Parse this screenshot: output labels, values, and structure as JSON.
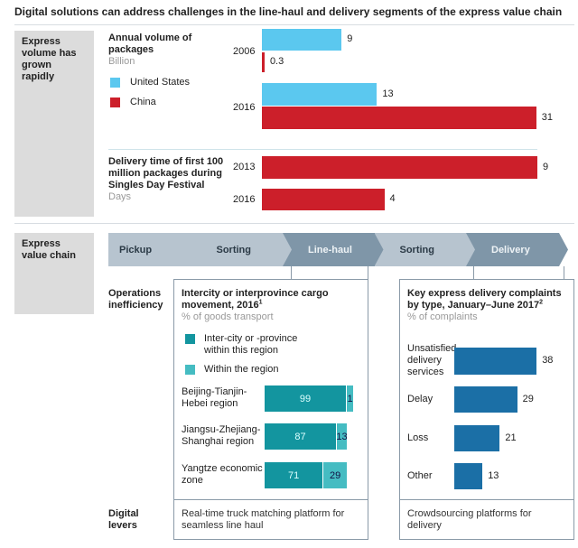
{
  "title": "Digital solutions can address challenges in the line-haul and delivery segments of the express value chain",
  "section1": {
    "label": "Express volume has grown rapidly"
  },
  "section2": {
    "label": "Express value chain"
  },
  "chart_data": [
    {
      "type": "bar",
      "title": "Annual volume of packages",
      "unit": "Billion",
      "categories": [
        "2006",
        "2016"
      ],
      "series": [
        {
          "name": "United States",
          "color": "#5bc8ef",
          "values": [
            9,
            13
          ]
        },
        {
          "name": "China",
          "color": "#cc1f2a",
          "values": [
            0.3,
            31
          ]
        }
      ],
      "value_labels": [
        [
          "9",
          "13"
        ],
        [
          "0.3",
          "31"
        ]
      ]
    },
    {
      "type": "bar",
      "title": "Delivery time of first 100 million packages during Singles Day Festival",
      "unit": "Days",
      "categories": [
        "2013",
        "2016"
      ],
      "series": [
        {
          "color": "#cc1f2a",
          "values": [
            9,
            4
          ]
        }
      ]
    },
    {
      "type": "bar",
      "stacked": true,
      "title": "Intercity or interprovince cargo movement, 2016",
      "footnote": "1",
      "unit": "% of goods transport",
      "categories": [
        "Beijing-Tianjin-Hebei region",
        "Jiangsu-Zhejiang-Shanghai region",
        "Yangtze economic zone"
      ],
      "series": [
        {
          "name": "Inter-city or -province within this region",
          "color": "#13959f",
          "values": [
            99,
            87,
            71
          ]
        },
        {
          "name": "Within the region",
          "color": "#45bcc2",
          "values": [
            1,
            13,
            29
          ]
        }
      ]
    },
    {
      "type": "bar",
      "title": "Key express delivery complaints by type, January–June 2017",
      "footnote": "2",
      "unit": "% of complaints",
      "categories": [
        "Unsatisfied delivery services",
        "Delay",
        "Loss",
        "Other"
      ],
      "series": [
        {
          "color": "#1b6fa6",
          "values": [
            38,
            29,
            21,
            13
          ]
        }
      ]
    }
  ],
  "chain": [
    {
      "label": "Pickup",
      "highlight": false
    },
    {
      "label": "Sorting",
      "highlight": false
    },
    {
      "label": "Line-haul",
      "highlight": true
    },
    {
      "label": "Sorting",
      "highlight": false
    },
    {
      "label": "Delivery",
      "highlight": true
    }
  ],
  "rows": {
    "ops": "Operations inefficiency",
    "levers": "Digital levers"
  },
  "levers": {
    "linehaul": "Real-time truck matching platform for seamless line haul",
    "delivery": "Crowdsourcing platforms for delivery"
  }
}
